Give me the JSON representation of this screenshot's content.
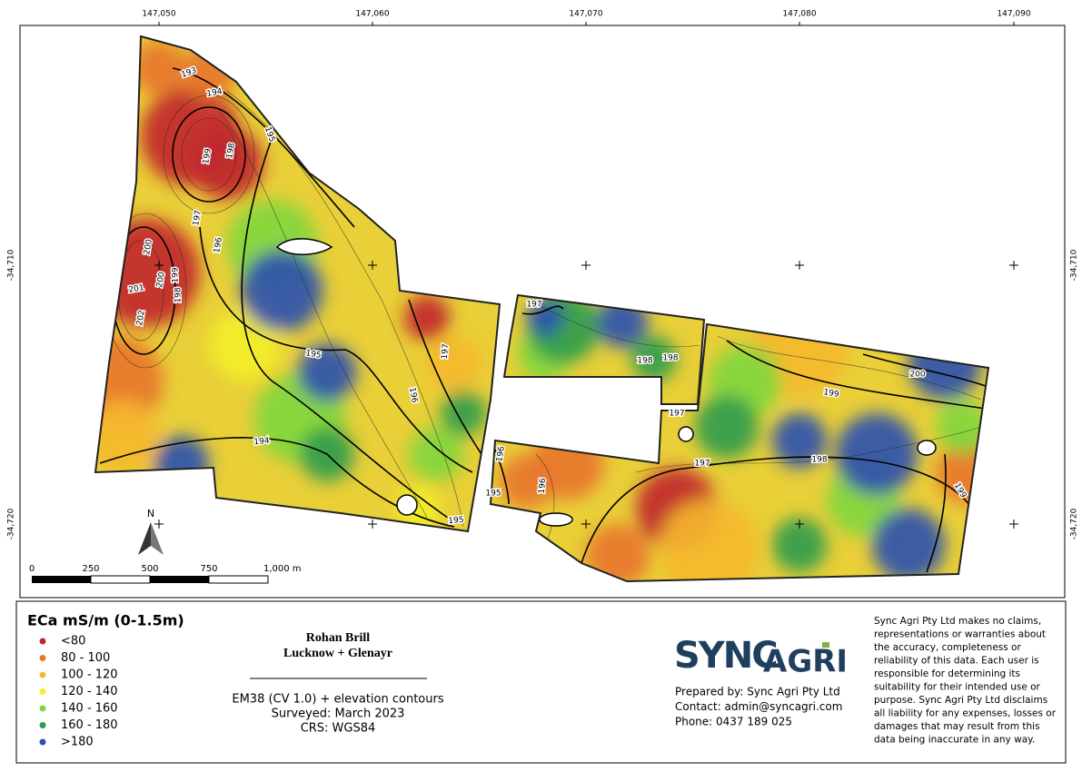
{
  "map": {
    "top_labels": [
      "147,050",
      "147,060",
      "147,070",
      "147,080",
      "147,090"
    ],
    "left_labels": [
      "-34,710",
      "-34,720"
    ],
    "right_labels": [
      "-34,710",
      "-34,720"
    ],
    "north": "N",
    "scale_labels": [
      "0",
      "250",
      "500",
      "750",
      "1,000 m"
    ],
    "contour_labels": [
      "193",
      "194",
      "195",
      "199",
      "198",
      "197",
      "196",
      "200",
      "201",
      "200",
      "199",
      "198",
      "202",
      "195",
      "196",
      "197",
      "194",
      "195",
      "197",
      "198",
      "198",
      "197",
      "200",
      "199",
      "198",
      "197",
      "199",
      "196",
      "196",
      "195"
    ]
  },
  "legend": {
    "title": "ECa mS/m (0-1.5m)",
    "items": [
      {
        "label": "<80",
        "color": "#c0262d"
      },
      {
        "label": "80 - 100",
        "color": "#e8762d"
      },
      {
        "label": "100 - 120",
        "color": "#f5b82e"
      },
      {
        "label": "120 - 140",
        "color": "#f3ee2a"
      },
      {
        "label": "140 - 160",
        "color": "#7fd63f"
      },
      {
        "label": "160 - 180",
        "color": "#2f9b4d"
      },
      {
        "label": ">180",
        "color": "#2a4fb0"
      }
    ]
  },
  "title_block": {
    "client": "Rohan Brill",
    "farm": "Lucknow + Glenayr",
    "details": [
      "EM38 (CV 1.0) + elevation contours",
      "Surveyed: March 2023",
      "CRS: WGS84"
    ]
  },
  "logo": {
    "sync": "SYNC",
    "agri": "AGRI"
  },
  "prepared": [
    "Prepared by: Sync Agri Pty Ltd",
    "Contact: admin@syncagri.com",
    "Phone: 0437 189 025"
  ],
  "disclaimer": [
    "Sync Agri Pty Ltd makes no claims,",
    "representations or warranties about",
    "the accuracy, completeness or",
    "reliability of this data. Each user is",
    "responsible for determining its",
    "suitability for their intended use or",
    "purpose. Sync Agri Pty Ltd disclaims",
    "all liability for any expenses, losses or",
    "damages that may result from this",
    "data being inaccurate in any way."
  ]
}
